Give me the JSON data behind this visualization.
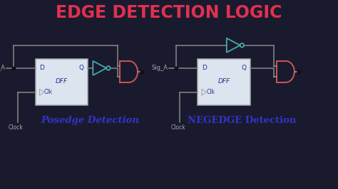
{
  "title": "EDGE DETECTION LOGIC",
  "title_color": "#e03050",
  "bg_color": "#1a1a2e",
  "subtitle_left": "Posedge Detection",
  "subtitle_right": "NEGEDGE Detection",
  "subtitle_color": "#3333cc",
  "subtitle_bg": "#d8d8f0",
  "wire_color": "#888888",
  "dff_border_color": "#aaaaaa",
  "dff_fill_color": "#dce4f0",
  "and_color": "#cc5555",
  "not_color": "#44aaaa",
  "sig_label_color": "#aaaaaa",
  "dff_label_color": "#223388",
  "clk_label_color": "#223388",
  "dot_color": "#111111",
  "font_size_title": 17,
  "font_size_sub": 9.5,
  "font_size_label": 6,
  "font_size_clk": 5.5
}
